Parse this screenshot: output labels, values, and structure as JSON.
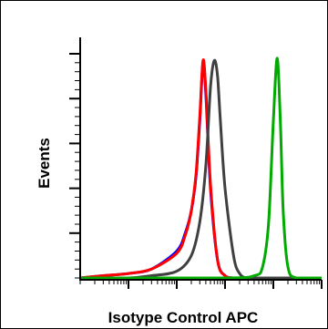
{
  "chart_data": {
    "type": "line",
    "title": "",
    "xlabel": "Isotype Control APC",
    "ylabel": "Events",
    "xscale": "log",
    "xlim": [
      1,
      100000
    ],
    "ylim": [
      0,
      100
    ],
    "grid": false,
    "legend": "none",
    "series": [
      {
        "color": "#0000ff",
        "x": [
          1,
          3,
          10,
          30,
          100,
          150,
          200,
          250,
          300,
          350,
          400,
          500,
          700,
          1000,
          1500,
          3000,
          10000,
          100000
        ],
        "y": [
          0,
          1,
          2,
          4,
          12,
          20,
          30,
          45,
          70,
          96,
          82,
          40,
          8,
          1,
          0,
          0,
          0,
          0
        ]
      },
      {
        "color": "#ff0000",
        "x": [
          1,
          3,
          10,
          30,
          100,
          150,
          200,
          250,
          300,
          350,
          400,
          500,
          700,
          1000,
          1500,
          3000,
          10000,
          100000
        ],
        "y": [
          0,
          1,
          2,
          4,
          11,
          19,
          30,
          46,
          72,
          97,
          84,
          42,
          8,
          1,
          0,
          0,
          0,
          0
        ]
      },
      {
        "color": "#404040",
        "x": [
          1,
          10,
          30,
          100,
          200,
          300,
          400,
          500,
          600,
          700,
          800,
          1000,
          1500,
          2000,
          3000,
          10000,
          100000
        ],
        "y": [
          0,
          0,
          1,
          3,
          10,
          25,
          50,
          85,
          97,
          90,
          70,
          40,
          10,
          2,
          0,
          0,
          0
        ]
      },
      {
        "color": "#00aa00",
        "x": [
          1,
          1000,
          4000,
          6000,
          8000,
          10000,
          12000,
          14000,
          16000,
          20000,
          30000,
          100000
        ],
        "y": [
          0,
          0,
          1,
          5,
          25,
          70,
          98,
          70,
          30,
          5,
          0,
          0
        ]
      }
    ],
    "style": {
      "axis_color": "#000000"
    }
  }
}
